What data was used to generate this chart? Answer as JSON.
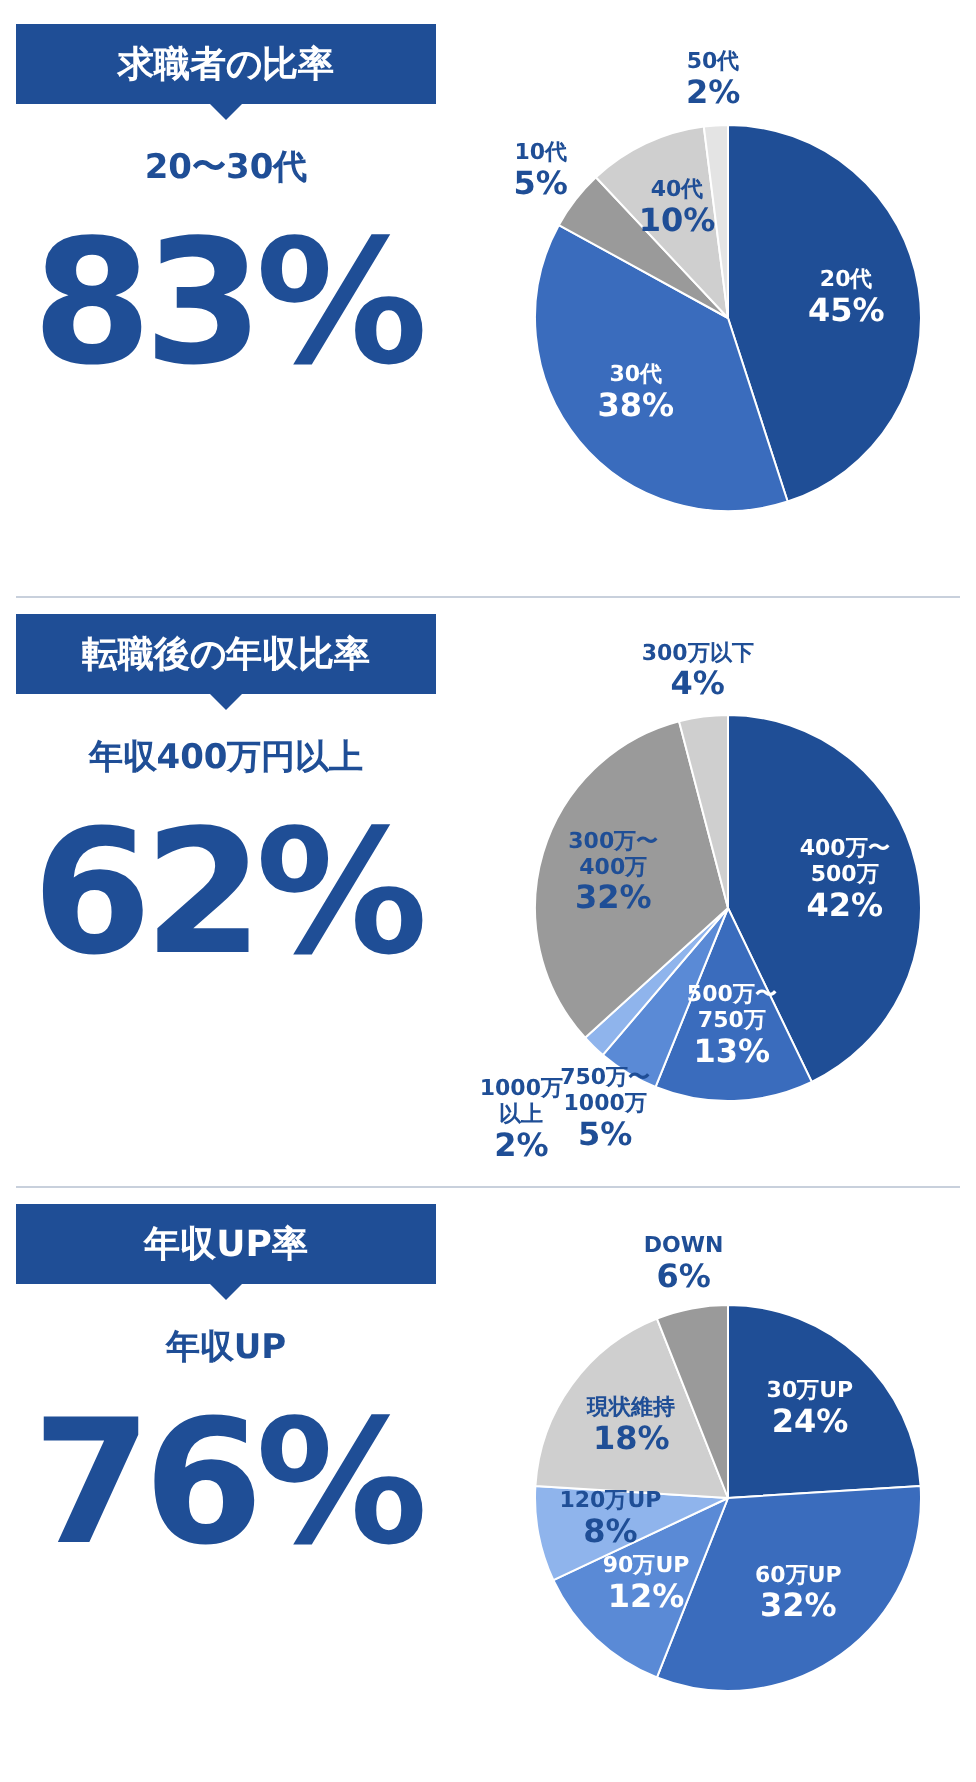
{
  "chart_data": [
    {
      "type": "pie",
      "title": "求職者の比率",
      "subtitle": "20〜30代",
      "annotations": [
        "83%"
      ],
      "categories": [
        "20代",
        "30代",
        "10代",
        "40代",
        "50代"
      ],
      "values": [
        45,
        38,
        5,
        10,
        2
      ],
      "colors": [
        "#1f4e96",
        "#3a6cbd",
        "#9a9a9a",
        "#cfcfcf",
        "#e4e4e4"
      ],
      "value_labels": [
        "45%",
        "38%",
        "5%",
        "10%",
        "2%"
      ]
    },
    {
      "type": "pie",
      "title": "転職後の年収比率",
      "subtitle": "年収400万円以上",
      "annotations": [
        "62%"
      ],
      "categories": [
        "400万〜500万",
        "500万〜750万",
        "750万〜1000万",
        "1000万以上",
        "300万〜400万",
        "300万以下"
      ],
      "values": [
        42,
        13,
        5,
        2,
        32,
        4
      ],
      "colors": [
        "#1f4e96",
        "#3a6cbd",
        "#5a8ad6",
        "#8fb4ec",
        "#9a9a9a",
        "#cfcfcf"
      ],
      "value_labels": [
        "42%",
        "13%",
        "5%",
        "2%",
        "32%",
        "4%"
      ]
    },
    {
      "type": "pie",
      "title": "年収UP率",
      "subtitle": "年収UP",
      "annotations": [
        "76%"
      ],
      "categories": [
        "30万UP",
        "60万UP",
        "90万UP",
        "120万UP",
        "現状維持",
        "DOWN"
      ],
      "values": [
        24,
        32,
        12,
        8,
        18,
        6
      ],
      "colors": [
        "#1f4e96",
        "#3a6cbd",
        "#5a8ad6",
        "#8fb4ec",
        "#cfcfcf",
        "#9a9a9a"
      ],
      "value_labels": [
        "24%",
        "32%",
        "12%",
        "8%",
        "18%",
        "6%"
      ]
    }
  ]
}
